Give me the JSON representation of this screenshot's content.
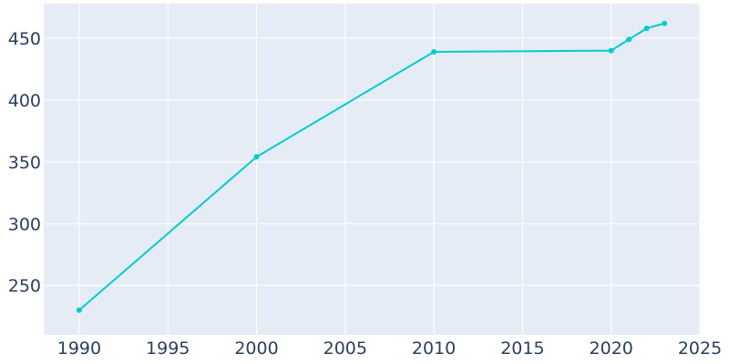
{
  "chart_data": {
    "type": "line",
    "title": "",
    "xlabel": "",
    "ylabel": "",
    "xlim": [
      1988,
      2025
    ],
    "ylim": [
      210,
      478
    ],
    "x_ticks": [
      1990,
      1995,
      2000,
      2005,
      2010,
      2015,
      2020,
      2025
    ],
    "y_ticks": [
      250,
      300,
      350,
      400,
      450
    ],
    "grid": true,
    "legend": "none",
    "series": [
      {
        "color": "#00cccc",
        "x": [
          1990,
          2000,
          2010,
          2020,
          2021,
          2022,
          2023
        ],
        "y": [
          230,
          354,
          439,
          440,
          449,
          458,
          462
        ]
      }
    ],
    "colors": {
      "plot_background": "#e5ecf6",
      "grid": "#ffffff",
      "tick_text": "#2a3f5f"
    }
  }
}
